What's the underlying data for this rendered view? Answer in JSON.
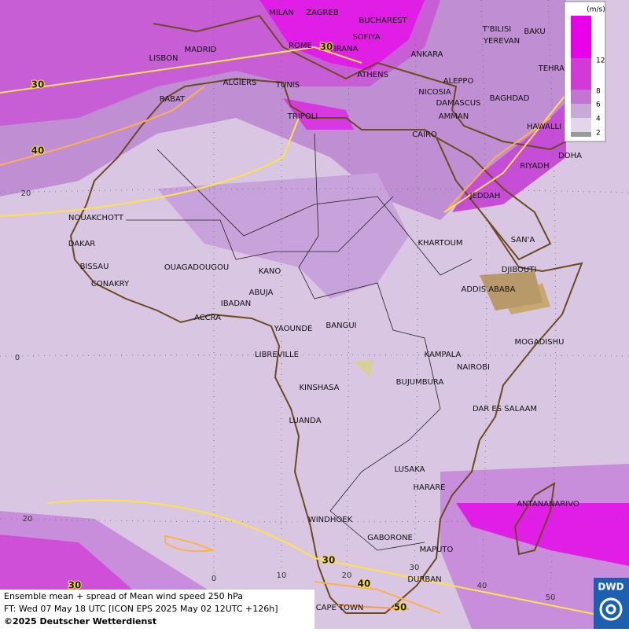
{
  "map_title": "Ensemble mean + spread of Mean wind speed 250 hPa",
  "forecast_time": "FT: Wed 07 May 18 UTC [ICON EPS 2025 May 02 12UTC +126h]",
  "copyright": "©2025 Deutscher Wetterdienst",
  "logo": "DWD",
  "legend": {
    "unit": "(m/s)",
    "ticks": [
      12,
      8,
      6,
      4,
      2
    ]
  },
  "cities": [
    "MILAN",
    "ZAGREB",
    "BUCHAREST",
    "T'BILISI",
    "BAKU",
    "SOFIYA",
    "YEREVAN",
    "ROME",
    "TIRANA",
    "MADRID",
    "ANKARA",
    "LISBON",
    "TEHRAN",
    "ATHENS",
    "ALGIERS",
    "TUNIS",
    "ALEPPO",
    "RABAT",
    "NICOSIA",
    "BAGHDAD",
    "DAMASCUS",
    "TRIPOLI",
    "AMMAN",
    "HAWALLI",
    "CAIRO",
    "DOHA",
    "RIYADH",
    "JEDDAH",
    "NOUAKCHOTT",
    "SAN'A",
    "KHARTOUM",
    "DAKAR",
    "BISSAU",
    "OUAGADOUGOU",
    "DJIBOUTI",
    "KANO",
    "CONAKRY",
    "ADDIS ABABA",
    "ABUJA",
    "IBADAN",
    "ACCRA",
    "YAOUNDE",
    "BANGUI",
    "MOGADISHU",
    "LIBREVILLE",
    "KAMPALA",
    "NAIROBI",
    "KINSHASA",
    "BUJUMBURA",
    "DAR ES SALAAM",
    "LUANDA",
    "LUSAKA",
    "HARARE",
    "ANTANANARIVO",
    "WINDHOEK",
    "GABORONE",
    "MAPUTO",
    "DURBAN",
    "CAPE TOWN"
  ],
  "contour_labels": [
    30,
    40,
    30,
    30,
    40,
    30,
    50
  ],
  "latitude_labels": [
    20,
    0,
    20
  ],
  "longitude_labels": [
    0,
    10,
    20,
    30,
    40,
    50
  ]
}
